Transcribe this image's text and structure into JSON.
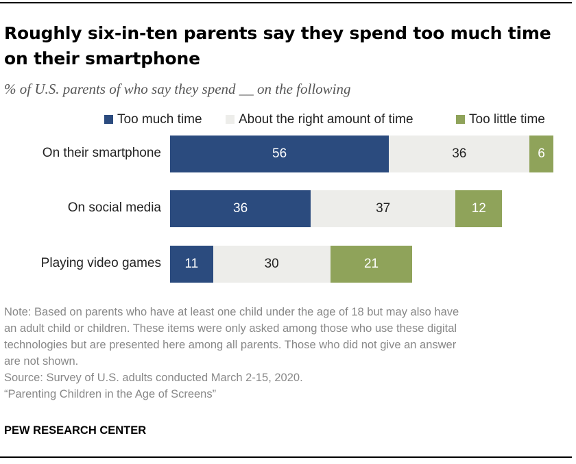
{
  "title": "Roughly six-in-ten parents say they spend too much time on their smartphone",
  "subtitle": "% of U.S. parents of who say they spend __ on the following",
  "colors": {
    "too_much": "#2b4b7e",
    "about_right": "#ededea",
    "too_little": "#8fa35a",
    "label_on_dark": "#ffffff",
    "label_on_light": "#222222"
  },
  "chart_data": {
    "type": "bar",
    "orientation": "horizontal",
    "stacked": true,
    "title": "Roughly six-in-ten parents say they spend too much time on their smartphone",
    "subtitle": "% of U.S. parents of who say they spend __ on the following",
    "xlabel": "",
    "ylabel": "",
    "xlim": [
      0,
      100
    ],
    "grid": false,
    "legend_position": "top-right",
    "categories": [
      "On their smartphone",
      "On social media",
      "Playing video games"
    ],
    "series": [
      {
        "name": "Too much time",
        "values": [
          56,
          36,
          11
        ]
      },
      {
        "name": "About the right amount of time",
        "values": [
          36,
          37,
          30
        ]
      },
      {
        "name": "Too little time",
        "values": [
          6,
          12,
          21
        ]
      }
    ]
  },
  "notes": [
    "Note: Based on parents who have at least one child under the age of 18 but may also have",
    "an adult child or children. These items were only asked among those who use these digital",
    "technologies but are presented here among all parents. Those who did not give an answer",
    "are not shown.",
    "Source: Survey of U.S. adults conducted March 2-15, 2020.",
    "“Parenting Children in the Age of Screens”"
  ],
  "brand": "PEW RESEARCH CENTER"
}
